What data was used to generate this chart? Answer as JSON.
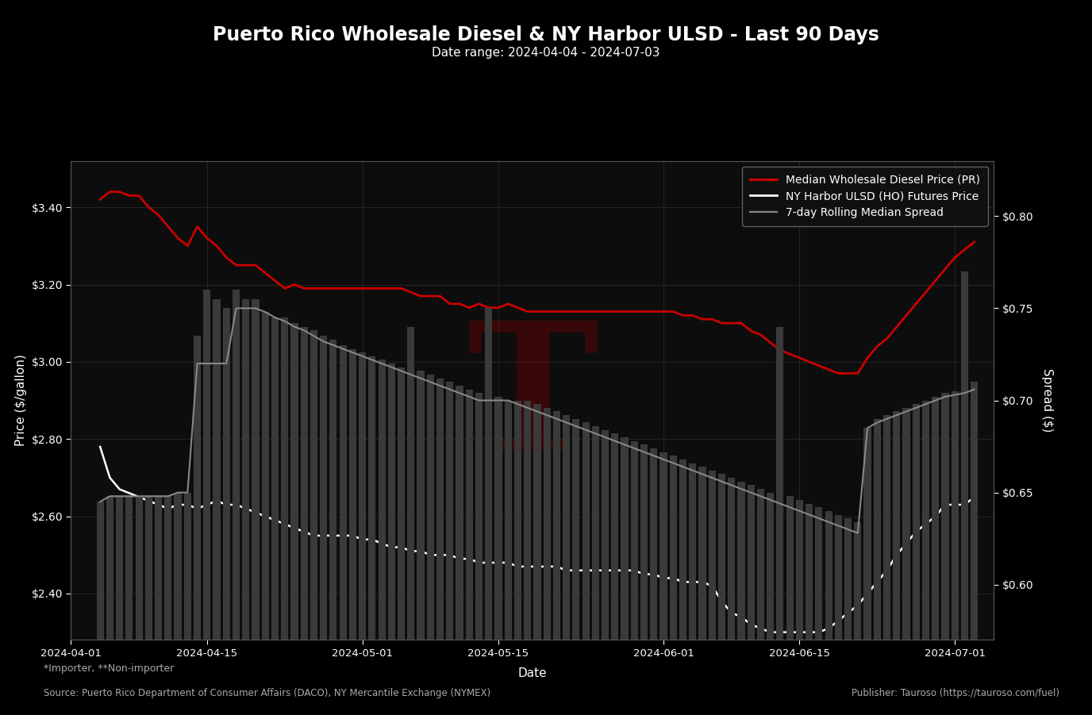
{
  "title": "Puerto Rico Wholesale Diesel & NY Harbor ULSD - Last 90 Days",
  "subtitle": "Date range: 2024-04-04 - 2024-07-03",
  "xlabel": "Date",
  "ylabel_left": "Price ($/gallon)",
  "ylabel_right": "Spread ($)",
  "background_color": "#000000",
  "plot_bg_color": "#0d0d0d",
  "text_color": "#ffffff",
  "grid_color": "#2a2a2a",
  "legend_labels": [
    "Median Wholesale Diesel Price (PR)",
    "NY Harbor ULSD (HO) Futures Price",
    "7-day Rolling Median Spread"
  ],
  "legend_line_colors": [
    "#cc0000",
    "#ffffff",
    "#888888"
  ],
  "footnote1": "*Importer, **Non-importer",
  "footnote2": "Source: Puerto Rico Department of Consumer Affairs (DACO), NY Mercantile Exchange (NYMEX)",
  "footnote3": "Publisher: Tauroso (https://tauroso.com/fuel)",
  "ylim_left": [
    2.28,
    3.52
  ],
  "ylim_right": [
    0.57,
    0.83
  ],
  "watermark_text": "T",
  "watermark_color": "#8b0000",
  "watermark_alpha": 0.35,
  "dates": [
    "2024-04-04",
    "2024-04-05",
    "2024-04-06",
    "2024-04-07",
    "2024-04-08",
    "2024-04-09",
    "2024-04-10",
    "2024-04-11",
    "2024-04-12",
    "2024-04-13",
    "2024-04-14",
    "2024-04-15",
    "2024-04-16",
    "2024-04-17",
    "2024-04-18",
    "2024-04-19",
    "2024-04-20",
    "2024-04-21",
    "2024-04-22",
    "2024-04-23",
    "2024-04-24",
    "2024-04-25",
    "2024-04-26",
    "2024-04-27",
    "2024-04-28",
    "2024-04-29",
    "2024-04-30",
    "2024-05-01",
    "2024-05-02",
    "2024-05-03",
    "2024-05-04",
    "2024-05-05",
    "2024-05-06",
    "2024-05-07",
    "2024-05-08",
    "2024-05-09",
    "2024-05-10",
    "2024-05-11",
    "2024-05-12",
    "2024-05-13",
    "2024-05-14",
    "2024-05-15",
    "2024-05-16",
    "2024-05-17",
    "2024-05-18",
    "2024-05-19",
    "2024-05-20",
    "2024-05-21",
    "2024-05-22",
    "2024-05-23",
    "2024-05-24",
    "2024-05-25",
    "2024-05-26",
    "2024-05-27",
    "2024-05-28",
    "2024-05-29",
    "2024-05-30",
    "2024-05-31",
    "2024-06-01",
    "2024-06-02",
    "2024-06-03",
    "2024-06-04",
    "2024-06-05",
    "2024-06-06",
    "2024-06-07",
    "2024-06-08",
    "2024-06-09",
    "2024-06-10",
    "2024-06-11",
    "2024-06-12",
    "2024-06-13",
    "2024-06-14",
    "2024-06-15",
    "2024-06-16",
    "2024-06-17",
    "2024-06-18",
    "2024-06-19",
    "2024-06-20",
    "2024-06-21",
    "2024-06-22",
    "2024-06-23",
    "2024-06-24",
    "2024-06-25",
    "2024-06-26",
    "2024-06-27",
    "2024-06-28",
    "2024-06-29",
    "2024-06-30",
    "2024-07-01",
    "2024-07-02",
    "2024-07-03"
  ],
  "wholesale_price": [
    3.42,
    3.44,
    3.44,
    3.43,
    3.43,
    3.4,
    3.38,
    3.35,
    3.32,
    3.3,
    3.35,
    3.32,
    3.3,
    3.27,
    3.25,
    3.25,
    3.25,
    3.23,
    3.21,
    3.19,
    3.2,
    3.19,
    3.19,
    3.19,
    3.19,
    3.19,
    3.19,
    3.19,
    3.19,
    3.19,
    3.19,
    3.19,
    3.18,
    3.17,
    3.17,
    3.17,
    3.15,
    3.15,
    3.14,
    3.15,
    3.14,
    3.14,
    3.15,
    3.14,
    3.13,
    3.13,
    3.13,
    3.13,
    3.13,
    3.13,
    3.13,
    3.13,
    3.13,
    3.13,
    3.13,
    3.13,
    3.13,
    3.13,
    3.13,
    3.13,
    3.12,
    3.12,
    3.11,
    3.11,
    3.1,
    3.1,
    3.1,
    3.08,
    3.07,
    3.05,
    3.03,
    3.02,
    3.01,
    3.0,
    2.99,
    2.98,
    2.97,
    2.97,
    2.97,
    3.01,
    3.04,
    3.06,
    3.09,
    3.12,
    3.15,
    3.18,
    3.21,
    3.24,
    3.27,
    3.29,
    3.31
  ],
  "futures_price": [
    2.78,
    2.7,
    2.67,
    2.66,
    2.65,
    2.64,
    2.63,
    2.62,
    2.63,
    2.63,
    2.62,
    2.63,
    2.64,
    2.63,
    2.63,
    2.62,
    2.61,
    2.6,
    2.59,
    2.58,
    2.57,
    2.56,
    2.55,
    2.55,
    2.55,
    2.55,
    2.55,
    2.54,
    2.54,
    2.53,
    2.52,
    2.52,
    2.51,
    2.51,
    2.5,
    2.5,
    2.5,
    2.49,
    2.49,
    2.48,
    2.48,
    2.48,
    2.48,
    2.47,
    2.47,
    2.47,
    2.47,
    2.47,
    2.46,
    2.46,
    2.46,
    2.46,
    2.46,
    2.46,
    2.46,
    2.46,
    2.45,
    2.45,
    2.44,
    2.44,
    2.43,
    2.43,
    2.43,
    2.42,
    2.38,
    2.35,
    2.34,
    2.32,
    2.31,
    2.3,
    2.3,
    2.3,
    2.3,
    2.3,
    2.3,
    2.31,
    2.33,
    2.35,
    2.37,
    2.4,
    2.43,
    2.46,
    2.5,
    2.53,
    2.56,
    2.58,
    2.6,
    2.63,
    2.63,
    2.63,
    2.65
  ],
  "spread_line": [
    0.645,
    0.648,
    0.648,
    0.648,
    0.648,
    0.648,
    0.648,
    0.648,
    0.65,
    0.65,
    0.72,
    0.72,
    0.72,
    0.72,
    0.75,
    0.75,
    0.75,
    0.748,
    0.745,
    0.743,
    0.74,
    0.738,
    0.735,
    0.732,
    0.73,
    0.728,
    0.726,
    0.724,
    0.722,
    0.72,
    0.718,
    0.716,
    0.714,
    0.712,
    0.71,
    0.708,
    0.706,
    0.704,
    0.702,
    0.7,
    0.7,
    0.7,
    0.7,
    0.698,
    0.696,
    0.694,
    0.692,
    0.69,
    0.688,
    0.686,
    0.684,
    0.682,
    0.68,
    0.678,
    0.676,
    0.674,
    0.672,
    0.67,
    0.668,
    0.666,
    0.664,
    0.662,
    0.66,
    0.658,
    0.656,
    0.654,
    0.652,
    0.65,
    0.648,
    0.646,
    0.644,
    0.642,
    0.64,
    0.638,
    0.636,
    0.634,
    0.632,
    0.63,
    0.628,
    0.685,
    0.688,
    0.69,
    0.692,
    0.694,
    0.696,
    0.698,
    0.7,
    0.702,
    0.703,
    0.704,
    0.706
  ],
  "bar_spread": [
    0.645,
    0.648,
    0.648,
    0.648,
    0.648,
    0.648,
    0.648,
    0.648,
    0.65,
    0.65,
    0.735,
    0.76,
    0.755,
    0.75,
    0.76,
    0.755,
    0.755,
    0.748,
    0.745,
    0.745,
    0.742,
    0.74,
    0.738,
    0.735,
    0.733,
    0.73,
    0.728,
    0.726,
    0.724,
    0.722,
    0.72,
    0.718,
    0.74,
    0.716,
    0.714,
    0.712,
    0.71,
    0.708,
    0.706,
    0.704,
    0.75,
    0.702,
    0.7,
    0.7,
    0.7,
    0.698,
    0.696,
    0.694,
    0.692,
    0.69,
    0.688,
    0.686,
    0.684,
    0.682,
    0.68,
    0.678,
    0.676,
    0.674,
    0.672,
    0.67,
    0.668,
    0.666,
    0.664,
    0.662,
    0.66,
    0.658,
    0.656,
    0.654,
    0.652,
    0.65,
    0.74,
    0.648,
    0.646,
    0.644,
    0.642,
    0.64,
    0.638,
    0.636,
    0.634,
    0.685,
    0.69,
    0.692,
    0.694,
    0.696,
    0.698,
    0.7,
    0.702,
    0.704,
    0.705,
    0.77,
    0.71
  ]
}
